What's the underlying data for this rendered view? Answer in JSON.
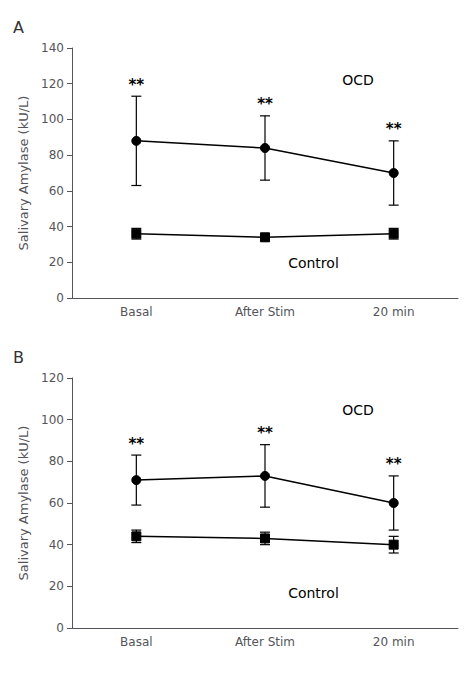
{
  "chart_data": [
    {
      "type": "line",
      "title": "A",
      "categories": [
        "Basal",
        "After Stim",
        "20 min"
      ],
      "ylabel": "Salivary Amylase (kU/L)",
      "ylim": [
        0,
        140
      ],
      "yticks": [
        0,
        20,
        40,
        60,
        80,
        100,
        120,
        140
      ],
      "grid": false,
      "series": [
        {
          "name": "OCD",
          "color": "#000000",
          "marker": "circle",
          "values": [
            88,
            84,
            70
          ],
          "errors": [
            25,
            18,
            18
          ],
          "annotations": [
            "**",
            "**",
            "**"
          ]
        },
        {
          "name": "Control",
          "color": "#000000",
          "marker": "square",
          "values": [
            36,
            34,
            36
          ],
          "errors": [
            3,
            2,
            3
          ]
        }
      ]
    },
    {
      "type": "line",
      "title": "B",
      "categories": [
        "Basal",
        "After Stim",
        "20 min"
      ],
      "ylabel": "Salivary Amylase (kU/L)",
      "ylim": [
        0,
        120
      ],
      "yticks": [
        0,
        20,
        40,
        60,
        80,
        100,
        120
      ],
      "grid": false,
      "series": [
        {
          "name": "OCD",
          "color": "#000000",
          "marker": "circle",
          "values": [
            71,
            73,
            60
          ],
          "errors": [
            12,
            15,
            13
          ],
          "annotations": [
            "**",
            "**",
            "**"
          ]
        },
        {
          "name": "Control",
          "color": "#000000",
          "marker": "square",
          "values": [
            44,
            43,
            40
          ],
          "errors": [
            3,
            3,
            4
          ]
        }
      ]
    }
  ]
}
